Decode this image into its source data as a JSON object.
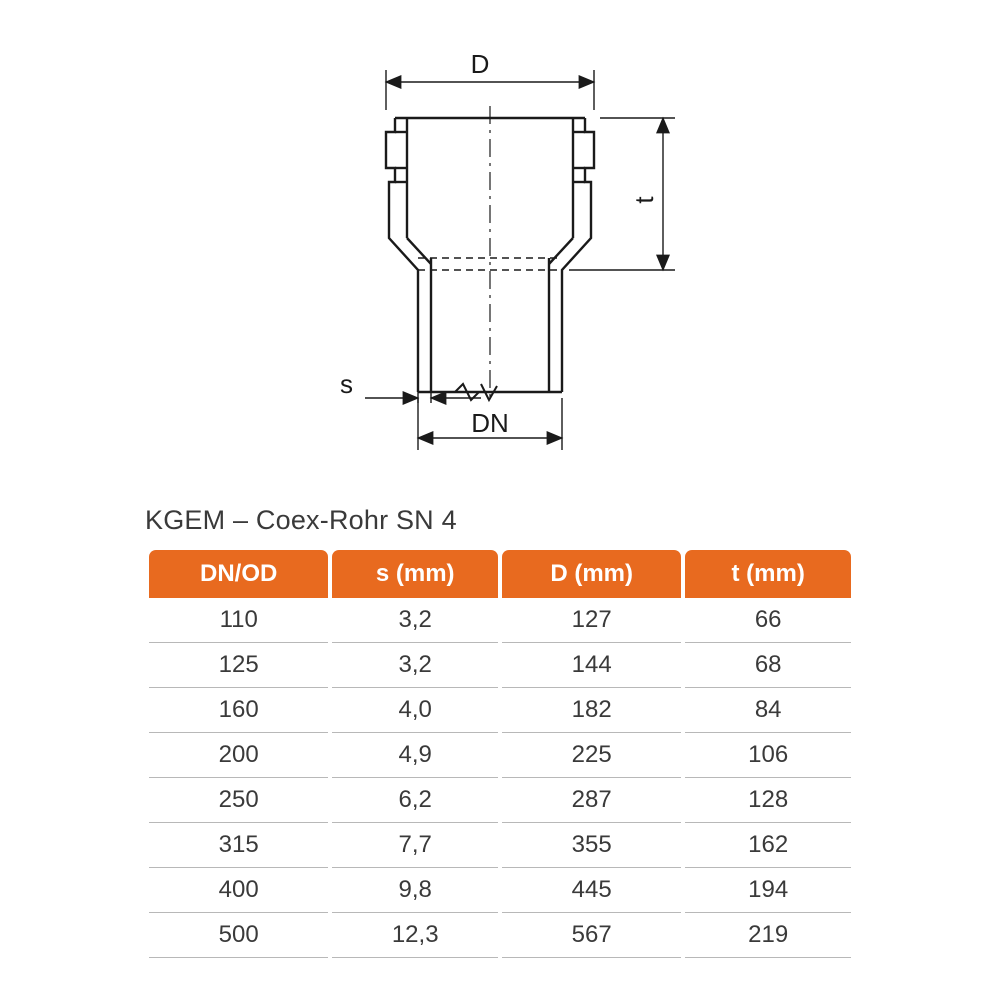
{
  "diagram": {
    "labels": {
      "D": "D",
      "t": "t",
      "s": "s",
      "DN": "DN"
    },
    "stroke_color": "#1a1a1a",
    "stroke_width_main": 2.4,
    "stroke_width_dim": 1.4,
    "font_size": 26,
    "font_color": "#1a1a1a"
  },
  "table": {
    "title": "KGEM – Coex-Rohr SN 4",
    "header_bg": "#e86a1f",
    "header_fg": "#ffffff",
    "row_border": "#b8b8b8",
    "cell_fg": "#3a3a3a",
    "columns": [
      "DN/OD",
      "s (mm)",
      "D (mm)",
      "t (mm)"
    ],
    "col_widths": [
      "26%",
      "24%",
      "26%",
      "24%"
    ],
    "rows": [
      [
        "110",
        "3,2",
        "127",
        "66"
      ],
      [
        "125",
        "3,2",
        "144",
        "68"
      ],
      [
        "160",
        "4,0",
        "182",
        "84"
      ],
      [
        "200",
        "4,9",
        "225",
        "106"
      ],
      [
        "250",
        "6,2",
        "287",
        "128"
      ],
      [
        "315",
        "7,7",
        "355",
        "162"
      ],
      [
        "400",
        "9,8",
        "445",
        "194"
      ],
      [
        "500",
        "12,3",
        "567",
        "219"
      ]
    ]
  }
}
